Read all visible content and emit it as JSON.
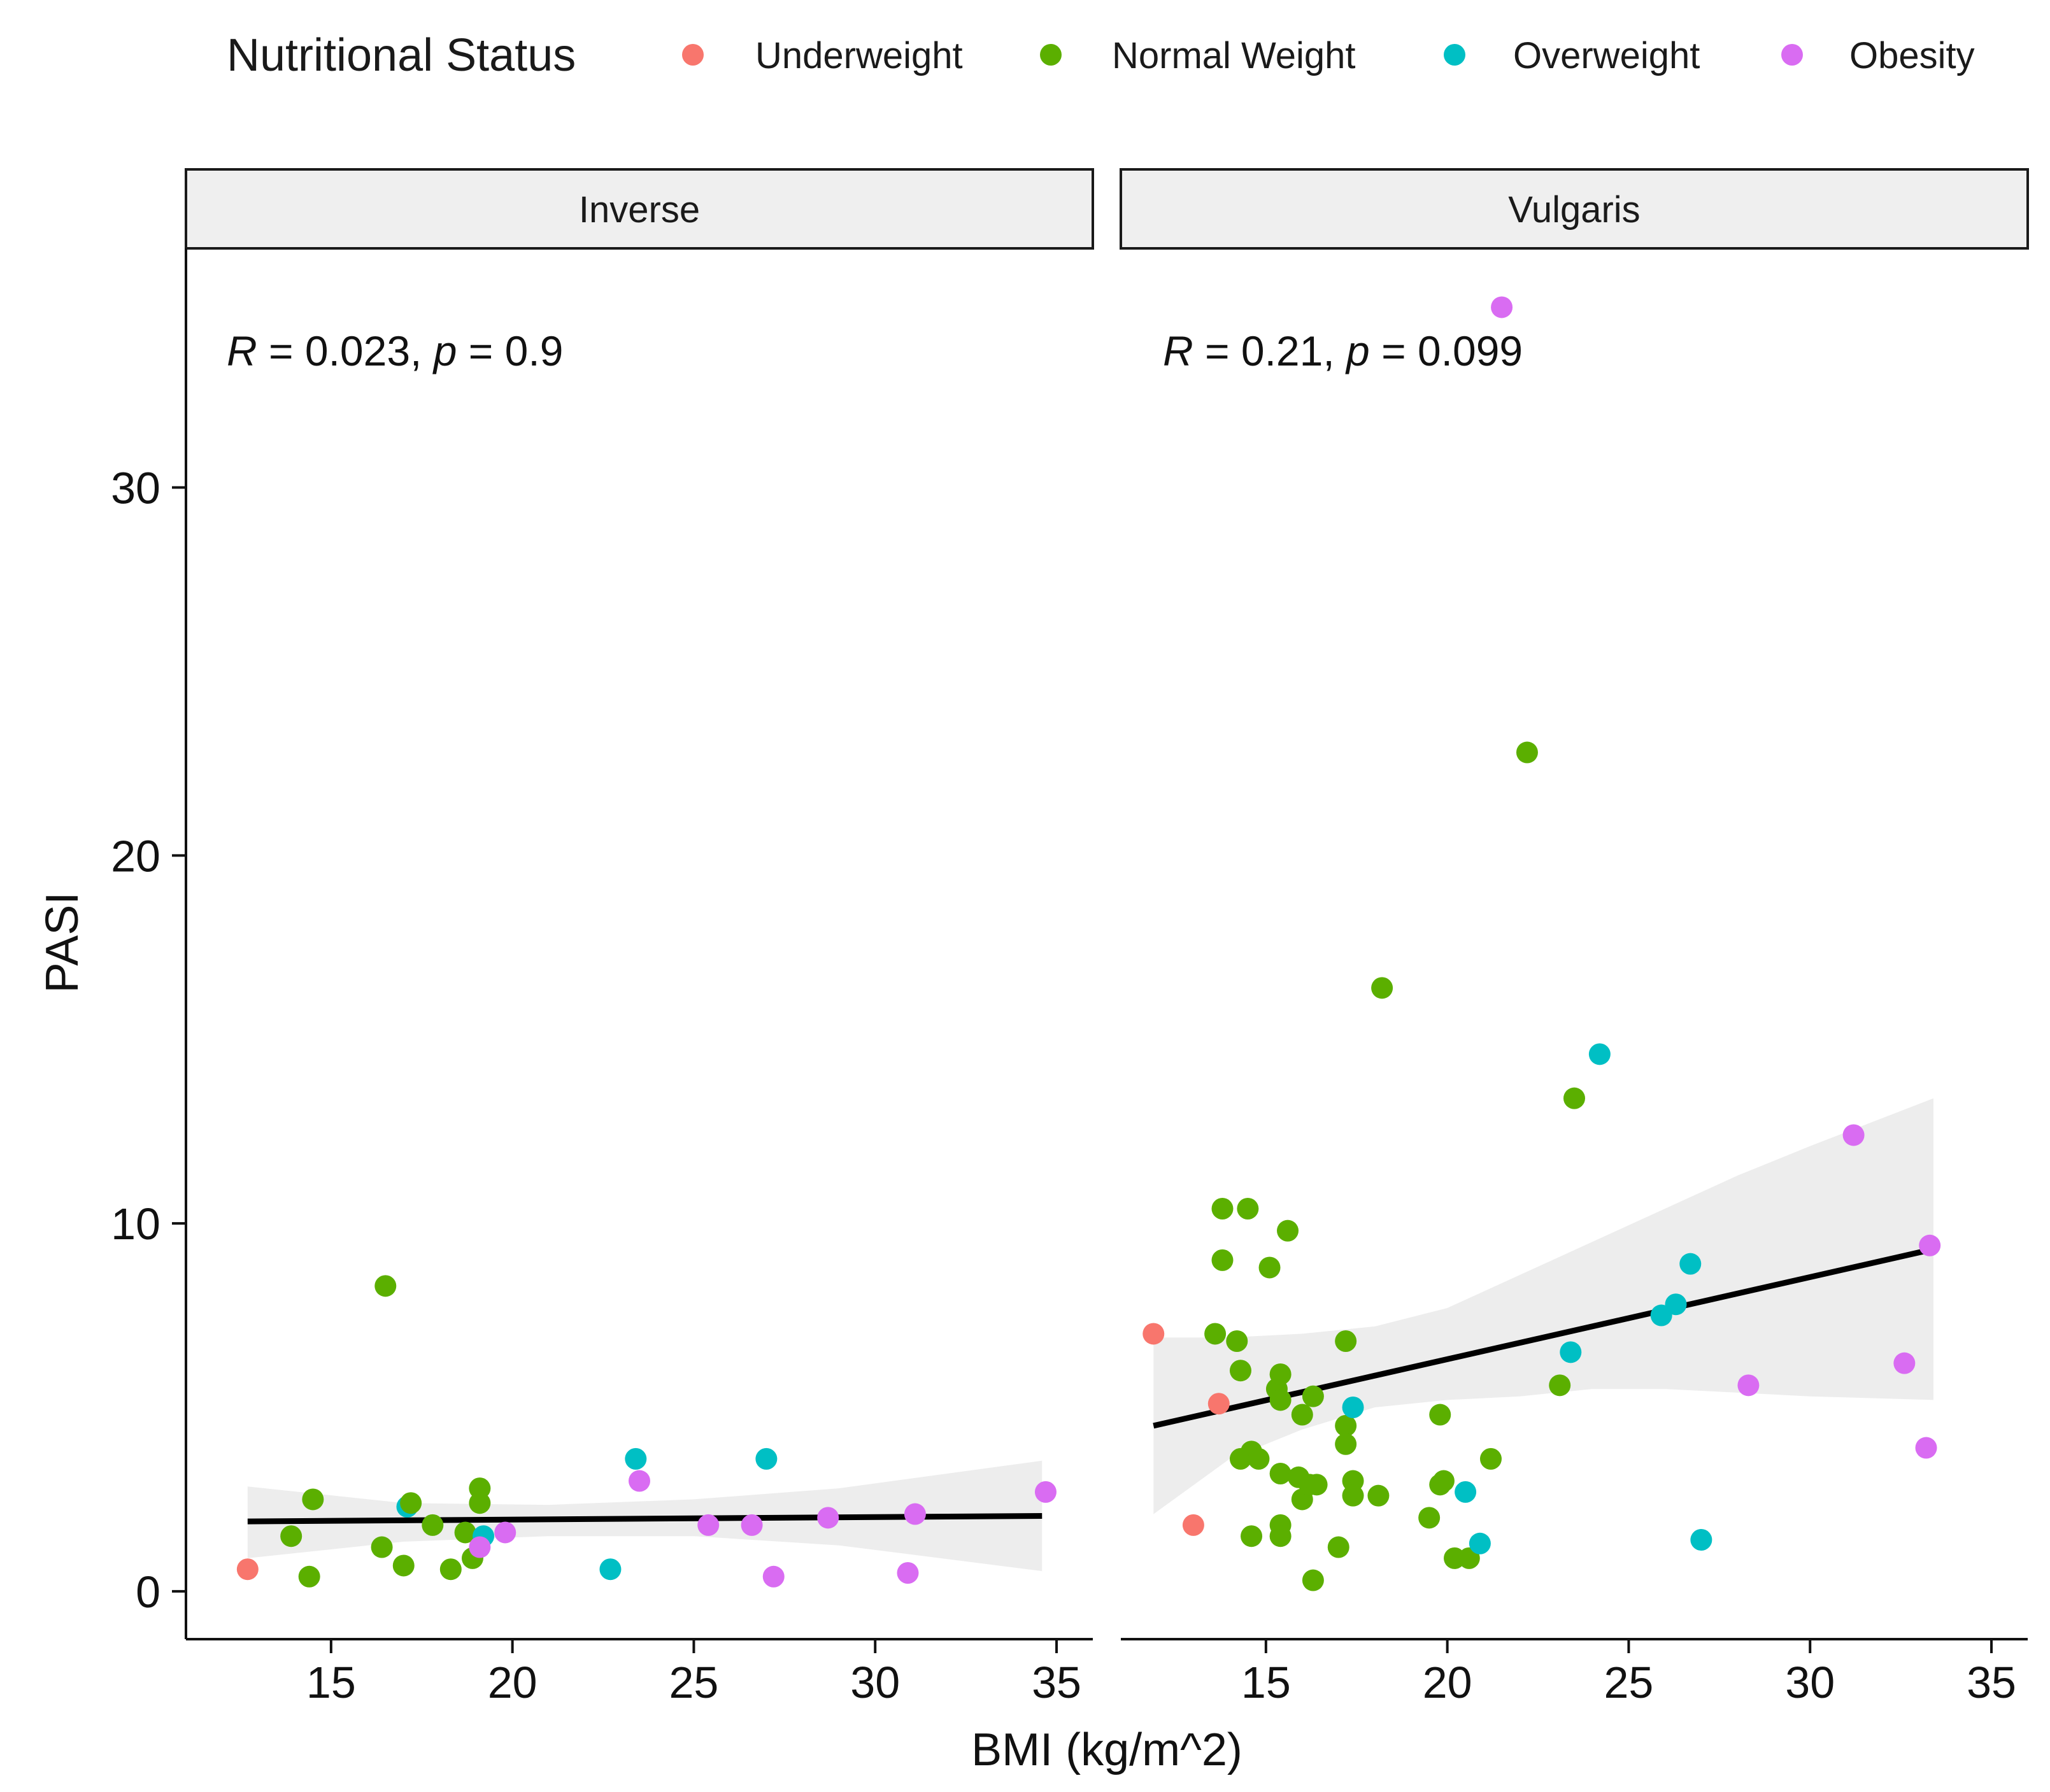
{
  "chart_data": {
    "type": "scatter",
    "xlabel": "BMI (kg/m^2)",
    "ylabel": "PASI",
    "xlim": [
      11,
      36
    ],
    "ylim": [
      -1.3,
      36.5
    ],
    "x_ticks": [
      15,
      20,
      25,
      30,
      35
    ],
    "y_ticks": [
      0,
      10,
      20,
      30
    ],
    "x_tick_labels": [
      "15",
      "20",
      "25",
      "30",
      "35"
    ],
    "y_tick_labels": [
      "0",
      "10",
      "20",
      "30"
    ],
    "legend": {
      "title": "Nutritional Status",
      "position": "top",
      "entries": [
        {
          "key": "Underweight",
          "label": "Underweight",
          "color": "#F8766D"
        },
        {
          "key": "Normal Weight",
          "label": "Normal Weight",
          "color": "#5BAF00"
        },
        {
          "key": "Overweight",
          "label": "Overweight",
          "color": "#00BFC4"
        },
        {
          "key": "Obesity",
          "label": "Obesity",
          "color": "#D96CF2"
        }
      ]
    },
    "panels": [
      {
        "name": "Inverse",
        "annotation": {
          "r_label": "R",
          "r_value": " = 0.023, ",
          "p_label": "p",
          "p_value": " = 0.9"
        },
        "fit": {
          "x": [
            12.7,
            34.6
          ],
          "y": [
            1.9,
            2.05
          ]
        },
        "ci": {
          "x": [
            12.7,
            17,
            21,
            25,
            29,
            34.6
          ],
          "upper": [
            2.85,
            2.4,
            2.35,
            2.5,
            2.8,
            3.55
          ],
          "lower": [
            0.9,
            1.35,
            1.5,
            1.5,
            1.25,
            0.55
          ]
        },
        "points": [
          {
            "x": 12.7,
            "y": 0.6,
            "group": "Underweight"
          },
          {
            "x": 13.9,
            "y": 1.5,
            "group": "Normal Weight"
          },
          {
            "x": 14.4,
            "y": 0.4,
            "group": "Normal Weight"
          },
          {
            "x": 14.5,
            "y": 2.5,
            "group": "Normal Weight"
          },
          {
            "x": 16.4,
            "y": 1.2,
            "group": "Normal Weight"
          },
          {
            "x": 16.5,
            "y": 8.3,
            "group": "Normal Weight"
          },
          {
            "x": 17.0,
            "y": 0.7,
            "group": "Normal Weight"
          },
          {
            "x": 17.1,
            "y": 2.3,
            "group": "Overweight"
          },
          {
            "x": 17.2,
            "y": 2.4,
            "group": "Normal Weight"
          },
          {
            "x": 17.8,
            "y": 1.8,
            "group": "Normal Weight"
          },
          {
            "x": 18.3,
            "y": 0.6,
            "group": "Normal Weight"
          },
          {
            "x": 18.7,
            "y": 1.6,
            "group": "Normal Weight"
          },
          {
            "x": 18.9,
            "y": 0.9,
            "group": "Normal Weight"
          },
          {
            "x": 19.1,
            "y": 2.8,
            "group": "Normal Weight"
          },
          {
            "x": 19.1,
            "y": 2.4,
            "group": "Normal Weight"
          },
          {
            "x": 19.2,
            "y": 1.5,
            "group": "Overweight"
          },
          {
            "x": 19.1,
            "y": 1.2,
            "group": "Obesity"
          },
          {
            "x": 19.8,
            "y": 1.6,
            "group": "Obesity"
          },
          {
            "x": 22.7,
            "y": 0.6,
            "group": "Overweight"
          },
          {
            "x": 23.4,
            "y": 3.6,
            "group": "Overweight"
          },
          {
            "x": 23.5,
            "y": 3.0,
            "group": "Obesity"
          },
          {
            "x": 25.4,
            "y": 1.8,
            "group": "Obesity"
          },
          {
            "x": 26.6,
            "y": 1.8,
            "group": "Obesity"
          },
          {
            "x": 27.0,
            "y": 3.6,
            "group": "Overweight"
          },
          {
            "x": 27.2,
            "y": 0.4,
            "group": "Obesity"
          },
          {
            "x": 28.7,
            "y": 2.0,
            "group": "Obesity"
          },
          {
            "x": 30.9,
            "y": 0.5,
            "group": "Obesity"
          },
          {
            "x": 31.1,
            "y": 2.1,
            "group": "Obesity"
          },
          {
            "x": 34.7,
            "y": 2.7,
            "group": "Obesity"
          }
        ]
      },
      {
        "name": "Vulgaris",
        "annotation": {
          "r_label": "R",
          "r_value": " = 0.21, ",
          "p_label": "p",
          "p_value": " = 0.099"
        },
        "fit": {
          "x": [
            11.9,
            33.4
          ],
          "y": [
            4.5,
            9.3
          ]
        },
        "ci": {
          "x": [
            11.9,
            14,
            16,
            18,
            20,
            22,
            24,
            26,
            28,
            30,
            33.4
          ],
          "upper": [
            6.9,
            6.9,
            7.0,
            7.2,
            7.7,
            8.6,
            9.5,
            10.4,
            11.3,
            12.1,
            13.4
          ],
          "lower": [
            2.1,
            3.6,
            4.4,
            5.0,
            5.2,
            5.3,
            5.5,
            5.5,
            5.4,
            5.3,
            5.2
          ]
        },
        "points": [
          {
            "x": 11.9,
            "y": 7.0,
            "group": "Underweight"
          },
          {
            "x": 13.0,
            "y": 1.8,
            "group": "Underweight"
          },
          {
            "x": 13.7,
            "y": 5.1,
            "group": "Underweight"
          },
          {
            "x": 13.6,
            "y": 7.0,
            "group": "Normal Weight"
          },
          {
            "x": 13.8,
            "y": 10.4,
            "group": "Normal Weight"
          },
          {
            "x": 13.8,
            "y": 9.0,
            "group": "Normal Weight"
          },
          {
            "x": 14.2,
            "y": 6.8,
            "group": "Normal Weight"
          },
          {
            "x": 14.3,
            "y": 6.0,
            "group": "Normal Weight"
          },
          {
            "x": 14.3,
            "y": 3.6,
            "group": "Normal Weight"
          },
          {
            "x": 14.5,
            "y": 10.4,
            "group": "Normal Weight"
          },
          {
            "x": 14.6,
            "y": 3.8,
            "group": "Normal Weight"
          },
          {
            "x": 14.6,
            "y": 1.5,
            "group": "Normal Weight"
          },
          {
            "x": 14.8,
            "y": 3.6,
            "group": "Normal Weight"
          },
          {
            "x": 15.1,
            "y": 8.8,
            "group": "Normal Weight"
          },
          {
            "x": 15.3,
            "y": 5.5,
            "group": "Normal Weight"
          },
          {
            "x": 15.4,
            "y": 5.9,
            "group": "Normal Weight"
          },
          {
            "x": 15.4,
            "y": 5.2,
            "group": "Normal Weight"
          },
          {
            "x": 15.4,
            "y": 3.2,
            "group": "Normal Weight"
          },
          {
            "x": 15.4,
            "y": 1.8,
            "group": "Normal Weight"
          },
          {
            "x": 15.4,
            "y": 1.5,
            "group": "Normal Weight"
          },
          {
            "x": 15.6,
            "y": 9.8,
            "group": "Normal Weight"
          },
          {
            "x": 15.9,
            "y": 3.1,
            "group": "Normal Weight"
          },
          {
            "x": 16.0,
            "y": 4.8,
            "group": "Normal Weight"
          },
          {
            "x": 16.0,
            "y": 2.5,
            "group": "Normal Weight"
          },
          {
            "x": 16.2,
            "y": 2.9,
            "group": "Normal Weight"
          },
          {
            "x": 16.3,
            "y": 5.3,
            "group": "Normal Weight"
          },
          {
            "x": 16.3,
            "y": 0.3,
            "group": "Normal Weight"
          },
          {
            "x": 16.4,
            "y": 2.9,
            "group": "Normal Weight"
          },
          {
            "x": 17.0,
            "y": 1.2,
            "group": "Normal Weight"
          },
          {
            "x": 17.2,
            "y": 6.8,
            "group": "Normal Weight"
          },
          {
            "x": 17.2,
            "y": 4.5,
            "group": "Normal Weight"
          },
          {
            "x": 17.2,
            "y": 4.0,
            "group": "Normal Weight"
          },
          {
            "x": 17.4,
            "y": 3.0,
            "group": "Normal Weight"
          },
          {
            "x": 17.4,
            "y": 2.6,
            "group": "Normal Weight"
          },
          {
            "x": 17.4,
            "y": 5.0,
            "group": "Overweight"
          },
          {
            "x": 18.1,
            "y": 2.6,
            "group": "Normal Weight"
          },
          {
            "x": 18.2,
            "y": 16.4,
            "group": "Normal Weight"
          },
          {
            "x": 19.5,
            "y": 2.0,
            "group": "Normal Weight"
          },
          {
            "x": 19.8,
            "y": 4.8,
            "group": "Normal Weight"
          },
          {
            "x": 19.8,
            "y": 2.9,
            "group": "Normal Weight"
          },
          {
            "x": 19.9,
            "y": 3.0,
            "group": "Normal Weight"
          },
          {
            "x": 20.2,
            "y": 0.9,
            "group": "Normal Weight"
          },
          {
            "x": 20.5,
            "y": 2.7,
            "group": "Overweight"
          },
          {
            "x": 20.6,
            "y": 0.9,
            "group": "Normal Weight"
          },
          {
            "x": 20.9,
            "y": 1.3,
            "group": "Overweight"
          },
          {
            "x": 21.5,
            "y": 34.9,
            "group": "Obesity"
          },
          {
            "x": 21.2,
            "y": 3.6,
            "group": "Normal Weight"
          },
          {
            "x": 22.2,
            "y": 22.8,
            "group": "Normal Weight"
          },
          {
            "x": 23.1,
            "y": 5.6,
            "group": "Normal Weight"
          },
          {
            "x": 23.4,
            "y": 6.5,
            "group": "Overweight"
          },
          {
            "x": 23.5,
            "y": 13.4,
            "group": "Normal Weight"
          },
          {
            "x": 24.2,
            "y": 14.6,
            "group": "Overweight"
          },
          {
            "x": 25.9,
            "y": 7.5,
            "group": "Overweight"
          },
          {
            "x": 26.3,
            "y": 7.8,
            "group": "Overweight"
          },
          {
            "x": 26.7,
            "y": 8.9,
            "group": "Overweight"
          },
          {
            "x": 27.0,
            "y": 1.4,
            "group": "Overweight"
          },
          {
            "x": 28.3,
            "y": 5.6,
            "group": "Obesity"
          },
          {
            "x": 31.2,
            "y": 12.4,
            "group": "Obesity"
          },
          {
            "x": 32.6,
            "y": 6.2,
            "group": "Obesity"
          },
          {
            "x": 33.3,
            "y": 9.4,
            "group": "Obesity"
          },
          {
            "x": 33.2,
            "y": 3.9,
            "group": "Obesity"
          }
        ]
      }
    ]
  }
}
